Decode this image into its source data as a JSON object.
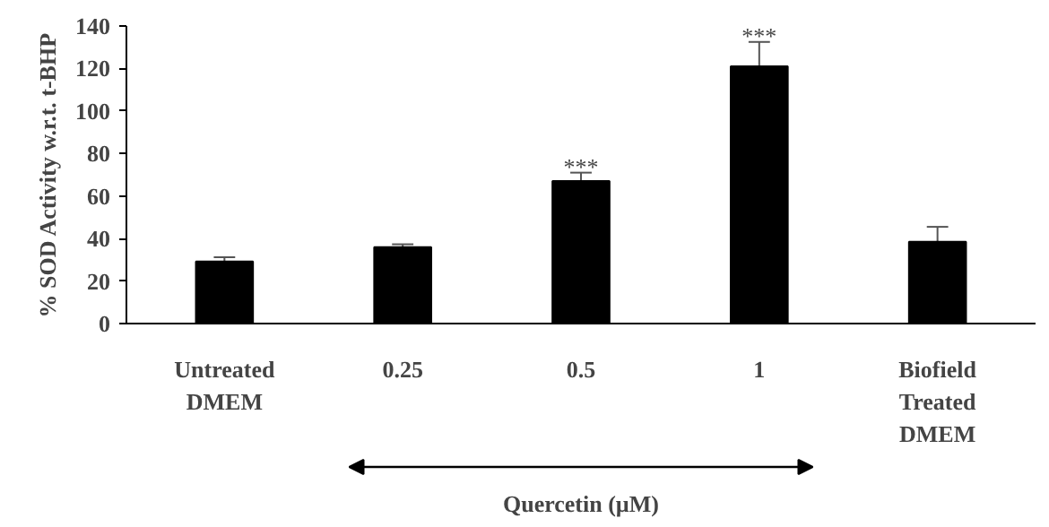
{
  "chart_data": {
    "type": "bar",
    "ylabel": "% SOD Activity w.r.t. t-BHP",
    "xlabel": "Quercetin (µM)",
    "categories": [
      "Untreated\nDMEM",
      "0.25",
      "0.5",
      "1",
      "Biofield\nTreated\nDMEM"
    ],
    "values": [
      29.2,
      36,
      67,
      121,
      38.5
    ],
    "errors": [
      2,
      1.3,
      4,
      11.5,
      7
    ],
    "color": "#000000",
    "ylim": [
      0,
      140
    ],
    "yticks": [
      0,
      20,
      40,
      60,
      80,
      100,
      120,
      140
    ],
    "grid": false,
    "annotations": [
      {
        "text": "***",
        "x": "0.5",
        "y": 71
      },
      {
        "text": "***",
        "x": "1",
        "y": 132.5
      }
    ]
  }
}
